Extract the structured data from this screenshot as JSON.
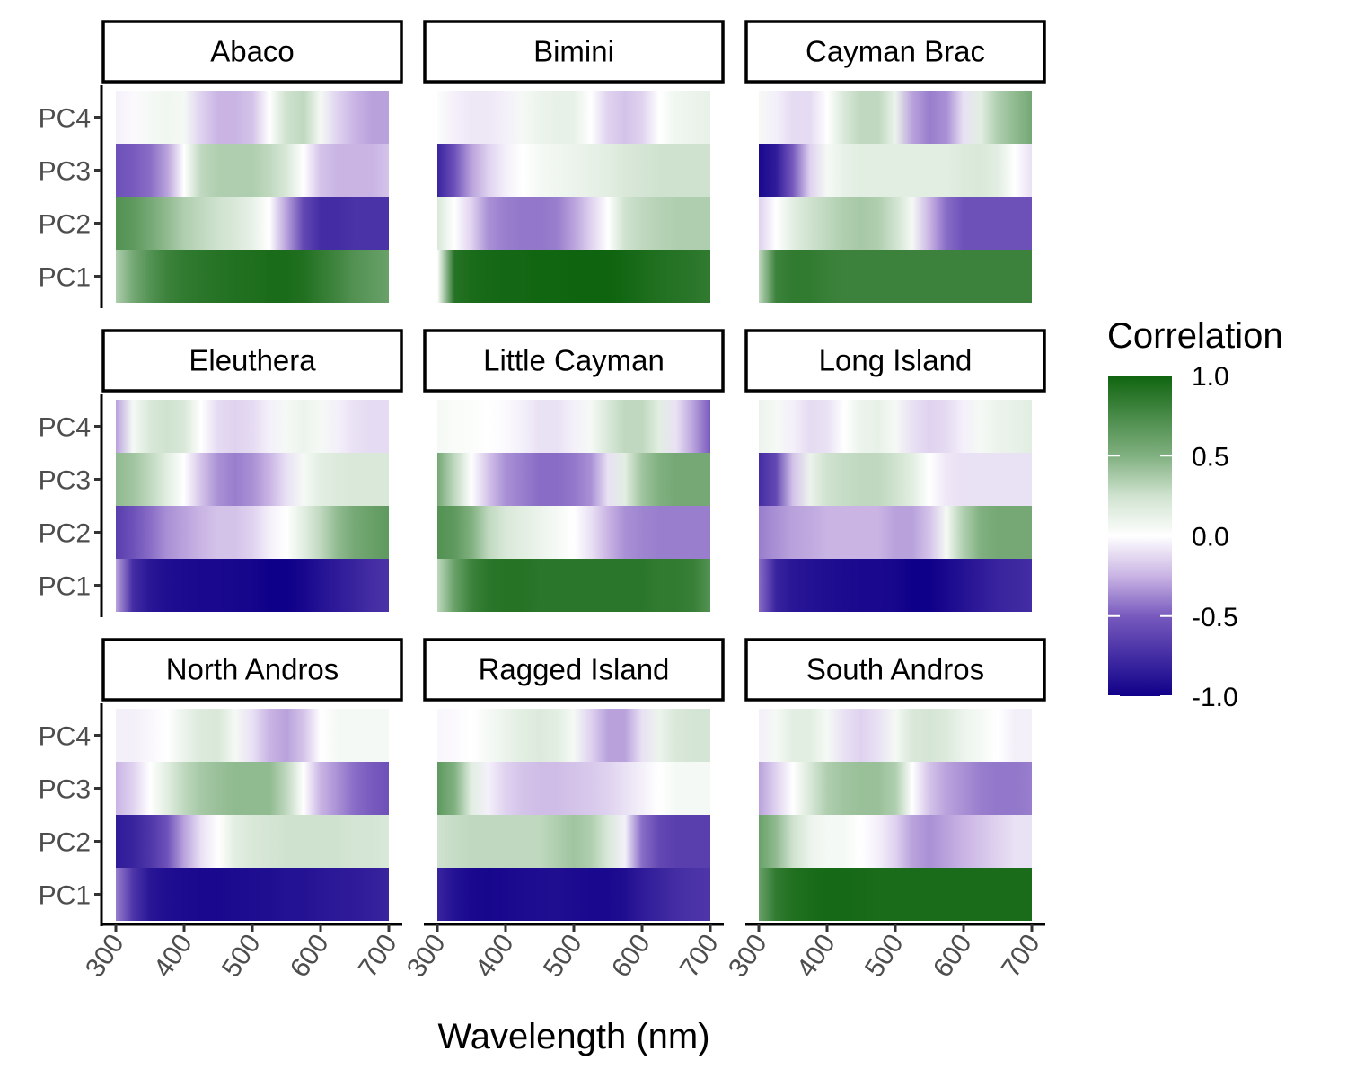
{
  "chart_data": {
    "type": "heatmap",
    "xlabel": "Wavelength (nm)",
    "ylabel": "",
    "x_ticks": [
      "300",
      "400",
      "500",
      "600",
      "700"
    ],
    "xlim": [
      300,
      700
    ],
    "y_categories": [
      "PC1",
      "PC2",
      "PC3",
      "PC4"
    ],
    "x_sample_wavelengths": [
      300,
      325,
      350,
      375,
      400,
      425,
      450,
      475,
      500,
      525,
      550,
      575,
      600,
      625,
      650,
      675,
      700
    ],
    "legend": {
      "title": "Correlation",
      "labels": [
        "1.0",
        "0.5",
        "0.0",
        "-0.5",
        "-1.0"
      ],
      "values": [
        1.0,
        0.5,
        0.0,
        -0.5,
        -1.0
      ],
      "range": [
        -1.0,
        1.0
      ],
      "position": "right"
    },
    "colors": {
      "low": "#0f0089",
      "mid": "#ffffff",
      "high": "#0f640f",
      "low_quarter": "#c9b4e4",
      "high_quarter": "#cfe2cf"
    },
    "panels": [
      {
        "name": "Abaco",
        "rows": {
          "PC1": [
            0.35,
            0.55,
            0.7,
            0.8,
            0.85,
            0.88,
            0.9,
            0.92,
            0.93,
            0.95,
            0.95,
            0.92,
            0.85,
            0.78,
            0.7,
            0.65,
            0.6
          ],
          "PC2": [
            0.7,
            0.65,
            0.55,
            0.45,
            0.35,
            0.3,
            0.25,
            0.2,
            0.12,
            0.0,
            -0.3,
            -0.6,
            -0.75,
            -0.75,
            -0.72,
            -0.72,
            -0.72
          ],
          "PC3": [
            -0.55,
            -0.5,
            -0.45,
            -0.3,
            0.0,
            0.3,
            0.35,
            0.35,
            0.35,
            0.3,
            0.2,
            0.0,
            -0.2,
            -0.25,
            -0.25,
            -0.25,
            -0.2
          ],
          "PC4": [
            -0.05,
            -0.02,
            0.05,
            0.08,
            0.05,
            -0.15,
            -0.25,
            -0.25,
            -0.2,
            0.0,
            0.25,
            0.3,
            0.05,
            -0.15,
            -0.25,
            -0.3,
            -0.3
          ]
        }
      },
      {
        "name": "Bimini",
        "rows": {
          "PC1": [
            0.0,
            0.9,
            0.95,
            0.97,
            0.98,
            0.98,
            0.99,
            0.99,
            1.0,
            1.0,
            1.0,
            0.98,
            0.95,
            0.92,
            0.9,
            0.88,
            0.85
          ],
          "PC2": [
            0.2,
            0.0,
            -0.15,
            -0.35,
            -0.4,
            -0.42,
            -0.42,
            -0.4,
            -0.3,
            -0.15,
            0.0,
            0.25,
            0.3,
            0.33,
            0.35,
            0.35,
            0.35
          ],
          "PC3": [
            -0.8,
            -0.55,
            -0.3,
            -0.15,
            -0.05,
            0.0,
            0.05,
            0.08,
            0.1,
            0.12,
            0.15,
            0.2,
            0.22,
            0.25,
            0.25,
            0.25,
            0.25
          ],
          "PC4": [
            0.02,
            -0.05,
            -0.08,
            -0.08,
            -0.05,
            0.05,
            0.1,
            0.12,
            0.12,
            0.0,
            -0.15,
            -0.2,
            -0.15,
            0.0,
            0.08,
            0.1,
            0.12
          ]
        }
      },
      {
        "name": "Cayman Brac",
        "rows": {
          "PC1": [
            0.3,
            0.8,
            0.85,
            0.85,
            0.82,
            0.8,
            0.8,
            0.8,
            0.8,
            0.8,
            0.8,
            0.8,
            0.8,
            0.8,
            0.8,
            0.8,
            0.8
          ],
          "PC2": [
            -0.15,
            0.0,
            0.15,
            0.25,
            0.3,
            0.35,
            0.38,
            0.35,
            0.25,
            0.05,
            -0.25,
            -0.45,
            -0.55,
            -0.55,
            -0.55,
            -0.55,
            -0.55
          ],
          "PC3": [
            -0.95,
            -0.85,
            -0.5,
            -0.15,
            0.05,
            0.12,
            0.15,
            0.15,
            0.15,
            0.15,
            0.15,
            0.15,
            0.18,
            0.2,
            0.15,
            0.0,
            -0.1
          ],
          "PC4": [
            0.05,
            -0.05,
            -0.12,
            -0.12,
            0.0,
            0.2,
            0.3,
            0.3,
            0.1,
            -0.3,
            -0.4,
            -0.35,
            -0.1,
            0.15,
            0.35,
            0.45,
            0.55
          ]
        }
      },
      {
        "name": "Eleuthera",
        "rows": {
          "PC1": [
            -0.3,
            -0.75,
            -0.88,
            -0.92,
            -0.94,
            -0.95,
            -0.95,
            -0.96,
            -0.97,
            -1.0,
            -1.0,
            -0.96,
            -0.9,
            -0.85,
            -0.8,
            -0.75,
            -0.72
          ],
          "PC2": [
            -0.65,
            -0.55,
            -0.45,
            -0.35,
            -0.3,
            -0.25,
            -0.2,
            -0.2,
            -0.15,
            -0.05,
            0.0,
            0.15,
            0.3,
            0.45,
            0.55,
            0.6,
            0.65
          ],
          "PC3": [
            0.45,
            0.4,
            0.3,
            0.15,
            0.0,
            -0.2,
            -0.35,
            -0.4,
            -0.35,
            -0.25,
            -0.1,
            0.05,
            0.15,
            0.18,
            0.2,
            0.2,
            0.2
          ],
          "PC4": [
            -0.3,
            0.05,
            0.2,
            0.25,
            0.2,
            0.0,
            -0.12,
            -0.15,
            -0.12,
            -0.05,
            0.05,
            0.1,
            0.05,
            -0.05,
            -0.1,
            -0.12,
            -0.12
          ]
        }
      },
      {
        "name": "Little Cayman",
        "rows": {
          "PC1": [
            0.3,
            0.6,
            0.8,
            0.88,
            0.9,
            0.9,
            0.88,
            0.88,
            0.88,
            0.88,
            0.88,
            0.88,
            0.88,
            0.85,
            0.85,
            0.82,
            0.7
          ],
          "PC2": [
            0.7,
            0.65,
            0.5,
            0.3,
            0.2,
            0.15,
            0.1,
            0.05,
            0.0,
            -0.1,
            -0.25,
            -0.35,
            -0.38,
            -0.4,
            -0.4,
            -0.4,
            -0.4
          ],
          "PC3": [
            0.55,
            0.3,
            0.0,
            -0.2,
            -0.35,
            -0.4,
            -0.45,
            -0.45,
            -0.42,
            -0.35,
            -0.1,
            0.15,
            0.4,
            0.5,
            0.55,
            0.55,
            0.55
          ],
          "PC4": [
            0.05,
            0.03,
            0.02,
            0.0,
            -0.02,
            -0.05,
            -0.1,
            -0.1,
            -0.05,
            0.05,
            0.2,
            0.3,
            0.3,
            0.15,
            -0.1,
            -0.3,
            -0.5
          ]
        }
      },
      {
        "name": "Long Island",
        "rows": {
          "PC1": [
            -0.45,
            -0.8,
            -0.88,
            -0.9,
            -0.92,
            -0.94,
            -0.95,
            -0.95,
            -0.96,
            -1.0,
            -1.0,
            -0.95,
            -0.9,
            -0.85,
            -0.8,
            -0.78,
            -0.75
          ],
          "PC2": [
            -0.4,
            -0.35,
            -0.3,
            -0.28,
            -0.25,
            -0.25,
            -0.25,
            -0.25,
            -0.3,
            -0.3,
            -0.2,
            0.05,
            0.35,
            0.5,
            0.55,
            0.55,
            0.55
          ],
          "PC3": [
            -0.75,
            -0.6,
            -0.2,
            0.1,
            0.25,
            0.28,
            0.3,
            0.3,
            0.25,
            0.15,
            0.0,
            -0.08,
            -0.1,
            -0.1,
            -0.1,
            -0.1,
            -0.1
          ],
          "PC4": [
            0.1,
            0.05,
            -0.05,
            -0.12,
            -0.1,
            0.0,
            0.1,
            0.12,
            0.05,
            -0.1,
            -0.15,
            -0.12,
            -0.05,
            0.05,
            0.1,
            0.12,
            0.15
          ]
        }
      },
      {
        "name": "North Andros",
        "rows": {
          "PC1": [
            -0.4,
            -0.7,
            -0.88,
            -0.92,
            -0.94,
            -0.95,
            -0.95,
            -0.94,
            -0.93,
            -0.92,
            -0.9,
            -0.9,
            -0.88,
            -0.86,
            -0.85,
            -0.83,
            -0.8
          ],
          "PC2": [
            -0.85,
            -0.8,
            -0.7,
            -0.55,
            -0.3,
            -0.1,
            0.0,
            0.15,
            0.2,
            0.22,
            0.25,
            0.25,
            0.25,
            0.25,
            0.22,
            0.22,
            0.2
          ],
          "PC3": [
            -0.25,
            -0.15,
            0.0,
            0.15,
            0.3,
            0.38,
            0.42,
            0.45,
            0.45,
            0.45,
            0.3,
            0.0,
            -0.25,
            -0.35,
            -0.45,
            -0.5,
            -0.55
          ],
          "PC4": [
            -0.05,
            -0.05,
            -0.03,
            0.0,
            0.1,
            0.18,
            0.2,
            0.05,
            -0.1,
            -0.25,
            -0.3,
            -0.2,
            0.0,
            0.05,
            0.05,
            0.05,
            0.05
          ]
        }
      },
      {
        "name": "Ragged Island",
        "rows": {
          "PC1": [
            -0.8,
            -0.9,
            -0.95,
            -0.96,
            -0.95,
            -0.94,
            -0.93,
            -0.92,
            -0.94,
            -0.95,
            -0.95,
            -0.92,
            -0.85,
            -0.8,
            -0.75,
            -0.72,
            -0.7
          ],
          "PC2": [
            0.25,
            0.28,
            0.3,
            0.3,
            0.3,
            0.3,
            0.3,
            0.35,
            0.4,
            0.35,
            0.2,
            -0.05,
            -0.45,
            -0.6,
            -0.65,
            -0.65,
            -0.65
          ],
          "PC3": [
            0.65,
            0.5,
            0.15,
            -0.05,
            -0.15,
            -0.2,
            -0.22,
            -0.22,
            -0.2,
            -0.18,
            -0.15,
            -0.1,
            -0.05,
            0.0,
            0.05,
            0.05,
            0.05
          ],
          "PC4": [
            -0.03,
            -0.02,
            0.0,
            0.05,
            0.1,
            0.15,
            0.18,
            0.15,
            0.05,
            -0.15,
            -0.3,
            -0.3,
            -0.1,
            0.1,
            0.2,
            0.22,
            0.22
          ]
        }
      },
      {
        "name": "South Andros",
        "rows": {
          "PC1": [
            0.6,
            0.85,
            0.92,
            0.95,
            0.97,
            0.97,
            0.96,
            0.95,
            0.95,
            0.95,
            0.95,
            0.95,
            0.95,
            0.95,
            0.95,
            0.95,
            0.95
          ],
          "PC2": [
            0.6,
            0.45,
            0.25,
            0.1,
            0.05,
            0.05,
            0.0,
            -0.05,
            -0.15,
            -0.3,
            -0.35,
            -0.3,
            -0.25,
            -0.2,
            -0.15,
            -0.1,
            -0.1
          ],
          "PC3": [
            -0.3,
            -0.15,
            0.0,
            0.2,
            0.35,
            0.4,
            0.42,
            0.42,
            0.35,
            0.0,
            -0.2,
            -0.3,
            -0.35,
            -0.4,
            -0.42,
            -0.42,
            -0.4
          ],
          "PC4": [
            -0.05,
            0.05,
            0.15,
            0.15,
            0.05,
            -0.1,
            -0.15,
            -0.1,
            0.05,
            0.2,
            0.22,
            0.18,
            0.1,
            0.05,
            0.0,
            -0.05,
            -0.05
          ]
        }
      }
    ]
  }
}
